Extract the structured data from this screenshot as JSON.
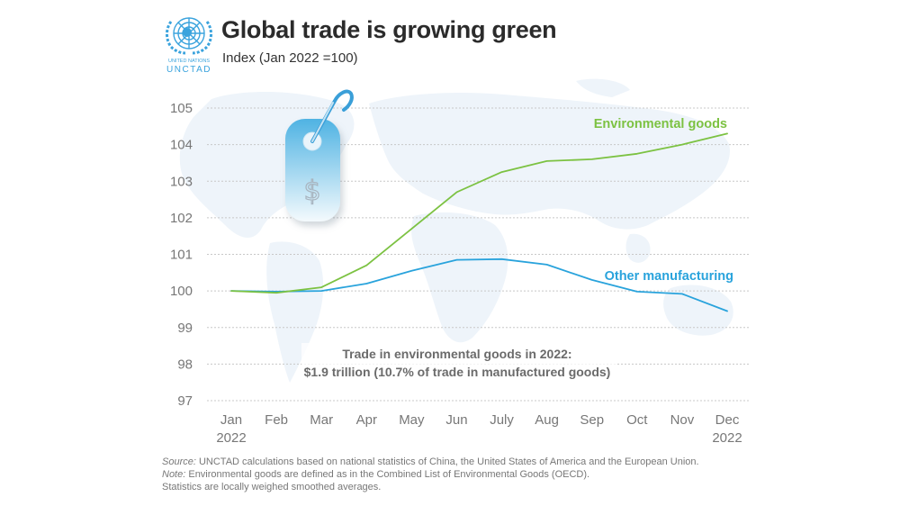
{
  "header": {
    "logo_text_line1": "UNITED NATIONS",
    "logo_text_line2": "UNCTAD",
    "title": "Global trade is growing green",
    "subtitle": "Index (Jan 2022 =100)"
  },
  "colors": {
    "environmental": "#7cc242",
    "other": "#29a3dc",
    "grid": "#c8c8c8",
    "map": "#eef4fa",
    "tag": "#5bb9e6"
  },
  "icons": {
    "price_tag": "price-tag-dollar-icon",
    "logo": "un-emblem-icon",
    "background": "world-map"
  },
  "chart_data": {
    "type": "line",
    "title": "Global trade is growing green",
    "subtitle": "Index (Jan 2022 =100)",
    "xlabel": "",
    "ylabel": "",
    "categories": [
      "Jan\n2022",
      "Feb",
      "Mar",
      "Apr",
      "May",
      "Jun",
      "July",
      "Aug",
      "Sep",
      "Oct",
      "Nov",
      "Dec\n2022"
    ],
    "x_tick_labels": [
      {
        "line1": "Jan",
        "line2": "2022"
      },
      {
        "line1": "Feb",
        "line2": ""
      },
      {
        "line1": "Mar",
        "line2": ""
      },
      {
        "line1": "Apr",
        "line2": ""
      },
      {
        "line1": "May",
        "line2": ""
      },
      {
        "line1": "Jun",
        "line2": ""
      },
      {
        "line1": "July",
        "line2": ""
      },
      {
        "line1": "Aug",
        "line2": ""
      },
      {
        "line1": "Sep",
        "line2": ""
      },
      {
        "line1": "Oct",
        "line2": ""
      },
      {
        "line1": "Nov",
        "line2": ""
      },
      {
        "line1": "Dec",
        "line2": "2022"
      }
    ],
    "y_ticks": [
      97,
      98,
      99,
      100,
      101,
      102,
      103,
      104,
      105
    ],
    "ylim": [
      97,
      105
    ],
    "grid": "horizontal dotted",
    "series": [
      {
        "name": "Environmental goods",
        "color": "#7cc242",
        "values": [
          100.0,
          99.95,
          100.1,
          100.7,
          101.7,
          102.7,
          103.25,
          103.55,
          103.6,
          103.75,
          104.0,
          104.3
        ]
      },
      {
        "name": "Other manufacturing",
        "color": "#29a3dc",
        "values": [
          100.0,
          99.98,
          100.0,
          100.2,
          100.55,
          100.85,
          100.87,
          100.72,
          100.3,
          99.98,
          99.92,
          99.45
        ]
      }
    ],
    "annotations": [
      "Trade in environmental goods in 2022:",
      "$1.9 trillion (10.7% of trade in manufactured goods)"
    ],
    "legend": "inline labels near line ends (top-right)"
  },
  "footer": {
    "source_label": "Source:",
    "source_text": " UNCTAD calculations based on national statistics of China, the United States of America and the European Union.",
    "note_label": "Note:",
    "note_text": "  Environmental goods are defined as in the Combined List of Environmental Goods (OECD).",
    "stats_text": "Statistics are locally weighed smoothed averages."
  }
}
